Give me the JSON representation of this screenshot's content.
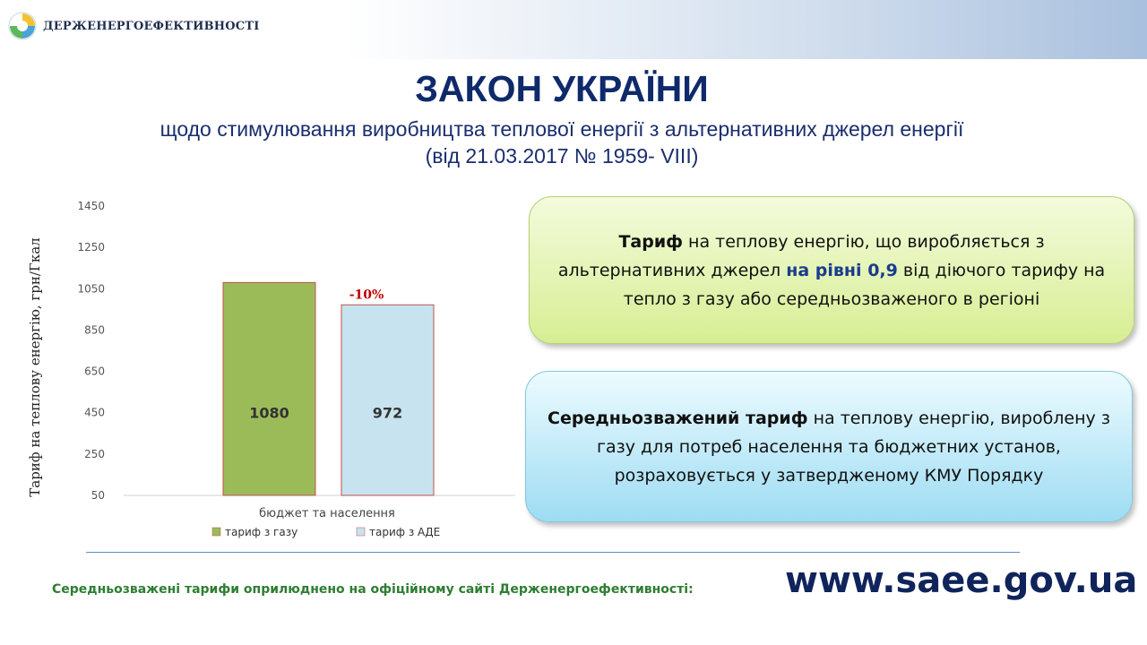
{
  "header": {
    "org_name": "ДЕРЖЕНЕРГОЕФЕКТИВНОСТІ",
    "band_color": "#a9c0de"
  },
  "title": "ЗАКОН УКРАЇНИ",
  "subtitle_line1": "щодо стимулювання виробництва теплової енергії з альтернативних джерел енергії",
  "subtitle_line2": "(від 21.03.2017 № 1959- VIII)",
  "chart_data": {
    "type": "bar",
    "categories": [
      "бюджет та населення"
    ],
    "series": [
      {
        "name": "тариф з газу",
        "values": [
          1080
        ],
        "color": "#9bbb59",
        "border": "#c0504d"
      },
      {
        "name": "тариф з АДЕ",
        "values": [
          972
        ],
        "color": "#c6e3ef",
        "border": "#c0504d"
      }
    ],
    "ylabel": "Тариф на теплову енергію, грн/Гкал",
    "yticks": [
      50,
      250,
      450,
      650,
      850,
      1050,
      1250,
      1450
    ],
    "ylim": [
      50,
      1450
    ],
    "annotation": "-10%",
    "annotation_color": "#c00000",
    "legend_position": "bottom",
    "grid": false
  },
  "box_green": {
    "part1": "Тариф",
    "part2": " на теплову енергію, що виробляється з альтернативних джерел ",
    "part3": "на рівні 0,9",
    "part4": " від діючого тарифу на тепло з газу або середньозваженого  в регіоні"
  },
  "box_blue": {
    "part1": "Середньозважений тариф",
    "part2": " на теплову енергію, вироблену з газу для потреб населення та бюджетних установ, розраховується у затвердженому КМУ Порядку"
  },
  "footer": {
    "text": "Середньозважені тарифи оприлюднено  на офіційному сайті Держенергоефективності:",
    "url": "www.saee.gov.ua"
  }
}
